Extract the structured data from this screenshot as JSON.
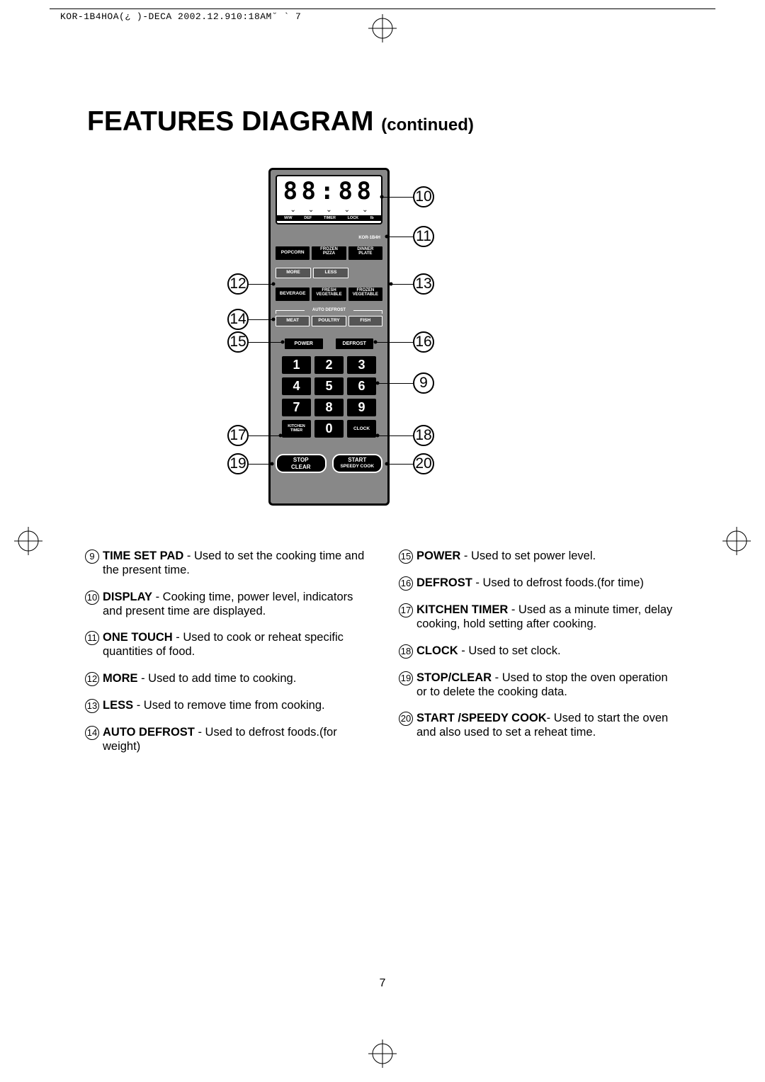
{
  "header": "KOR-1B4HOA(¿ )-DECA 2002.12.910:18AM˘   `  7",
  "title_main": "FEATURES DIAGRAM",
  "title_sub": "(continued)",
  "page_number": "7",
  "panel": {
    "clock": "88:88",
    "disp_labels": [
      "M/W",
      "DEF",
      "TIMER",
      "LOCK",
      "lb"
    ],
    "model": "KOR-1B4H",
    "row_popcorn": [
      {
        "line1": "POPCORN"
      },
      {
        "line1": "FROZEN",
        "line2": "PIZZA"
      },
      {
        "line1": "DINNER",
        "line2": "PLATE"
      }
    ],
    "more_btn": "MORE",
    "less_btn": "LESS",
    "row_bev": [
      {
        "line1": "BEVERAGE"
      },
      {
        "line1": "FRESH",
        "line2": "VEGETABLE"
      },
      {
        "line1": "FROZEN",
        "line2": "VEGETABLE"
      }
    ],
    "auto_defrost_label": "AUTO DEFROST",
    "row_meat": [
      {
        "line1": "MEAT"
      },
      {
        "line1": "POULTRY"
      },
      {
        "line1": "FISH"
      }
    ],
    "power_btn": "POWER",
    "defrost_btn": "DEFROST",
    "keys": [
      "1",
      "2",
      "3",
      "4",
      "5",
      "6",
      "7",
      "8",
      "9"
    ],
    "kitchen_timer_l1": "KITCHEN",
    "kitchen_timer_l2": "TIMER",
    "zero_key": "0",
    "clock_btn": "CLOCK",
    "stop_l1": "STOP",
    "stop_l2": "CLEAR",
    "start_l1": "START",
    "start_l2": "SPEEDY COOK"
  },
  "callouts": {
    "c9": "9",
    "c10": "10",
    "c11": "11",
    "c12": "12",
    "c13": "13",
    "c14": "14",
    "c15": "15",
    "c16": "16",
    "c17": "17",
    "c18": "18",
    "c19": "19",
    "c20": "20"
  },
  "desc_left": [
    {
      "num": "9",
      "name": "TIME SET PAD",
      "text": " - Used to set the cooking time and the present time."
    },
    {
      "num": "10",
      "name": "DISPLAY",
      "text": " - Cooking time, power level, indicators and present time are displayed."
    },
    {
      "num": "11",
      "name": "ONE TOUCH",
      "text": " - Used to cook or reheat specific quantities of food."
    },
    {
      "num": "12",
      "name": "MORE",
      "text": " - Used to add time to cooking."
    },
    {
      "num": "13",
      "name": "LESS",
      "text": " - Used to remove time from cooking."
    },
    {
      "num": "14",
      "name": "AUTO DEFROST",
      "text": " - Used to defrost foods.(for weight)"
    }
  ],
  "desc_right": [
    {
      "num": "15",
      "name": "POWER",
      "text": " - Used to set power level."
    },
    {
      "num": "16",
      "name": "DEFROST",
      "text": " - Used to defrost foods.(for time)"
    },
    {
      "num": "17",
      "name": "KITCHEN TIMER",
      "text": " - Used as a minute timer, delay cooking, hold setting after cooking."
    },
    {
      "num": "18",
      "name": "CLOCK",
      "text": " - Used to set clock."
    },
    {
      "num": "19",
      "name": "STOP/CLEAR",
      "text": " - Used to stop the oven operation or to delete the cooking data."
    },
    {
      "num": "20",
      "name": "START /SPEEDY COOK",
      "text": "- Used to start the oven and also used to set a reheat time."
    }
  ]
}
